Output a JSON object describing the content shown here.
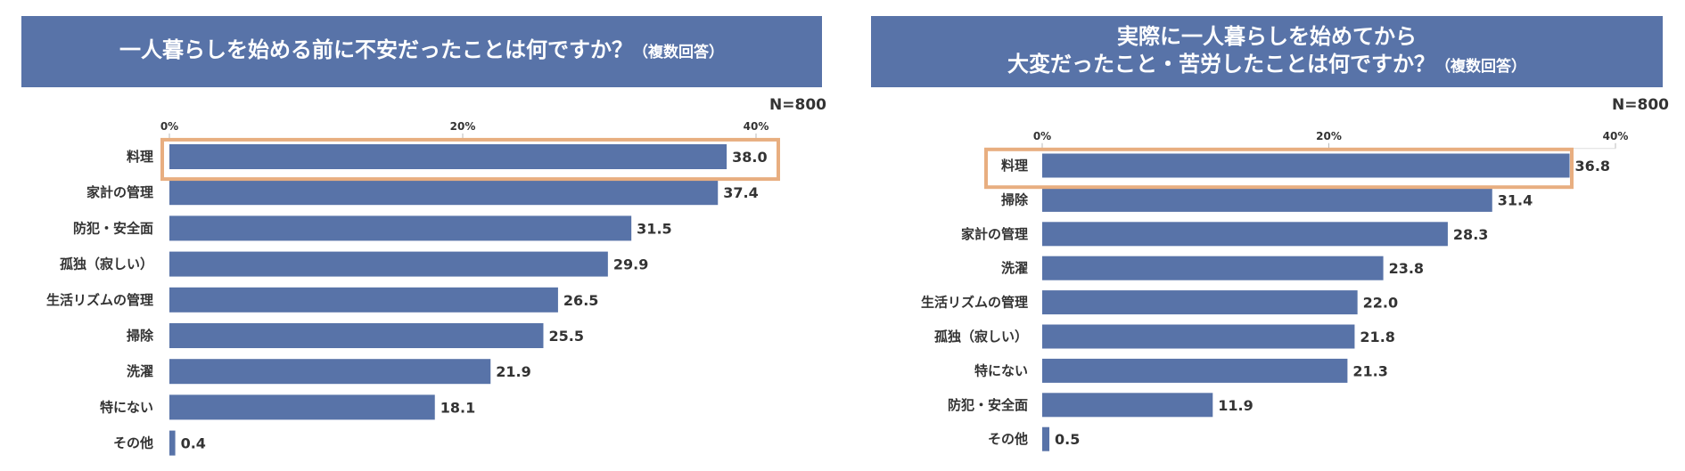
{
  "charts": [
    {
      "title_lines": [
        "一人暮らしを始める前に不安だったことは何ですか？"
      ],
      "title_suffix": "（複数回答）",
      "n_label": "N=800",
      "chart_data": {
        "type": "bar",
        "orientation": "horizontal",
        "categories": [
          "料理",
          "家計の管理",
          "防犯・安全面",
          "孤独（寂しい）",
          "生活リズムの管理",
          "掃除",
          "洗濯",
          "特にない",
          "その他"
        ],
        "values": [
          38.0,
          37.4,
          31.5,
          29.9,
          26.5,
          25.5,
          21.9,
          18.1,
          0.4
        ],
        "value_labels": [
          "38.0",
          "37.4",
          "31.5",
          "29.9",
          "26.5",
          "25.5",
          "21.9",
          "18.1",
          "0.4"
        ],
        "xlim": [
          0,
          40
        ],
        "ticks": [
          0,
          20,
          40
        ],
        "tick_labels": [
          "0%",
          "20%",
          "40%"
        ],
        "highlight_index": 0,
        "bar_color": "#5873a8",
        "highlight_color": "#e8ae80"
      }
    },
    {
      "title_lines": [
        "実際に一人暮らしを始めてから",
        "大変だったこと・苦労したことは何ですか？"
      ],
      "title_suffix": "（複数回答）",
      "n_label": "N=800",
      "chart_data": {
        "type": "bar",
        "orientation": "horizontal",
        "categories": [
          "料理",
          "掃除",
          "家計の管理",
          "洗濯",
          "生活リズムの管理",
          "孤独（寂しい）",
          "特にない",
          "防犯・安全面",
          "その他"
        ],
        "values": [
          36.8,
          31.4,
          28.3,
          23.8,
          22.0,
          21.8,
          21.3,
          11.9,
          0.5
        ],
        "value_labels": [
          "36.8",
          "31.4",
          "28.3",
          "23.8",
          "22.0",
          "21.8",
          "21.3",
          "11.9",
          "0.5"
        ],
        "xlim": [
          0,
          40
        ],
        "ticks": [
          0,
          20,
          40
        ],
        "tick_labels": [
          "0%",
          "20%",
          "40%"
        ],
        "highlight_index": 0,
        "bar_color": "#5873a8",
        "highlight_color": "#e8ae80"
      }
    }
  ]
}
